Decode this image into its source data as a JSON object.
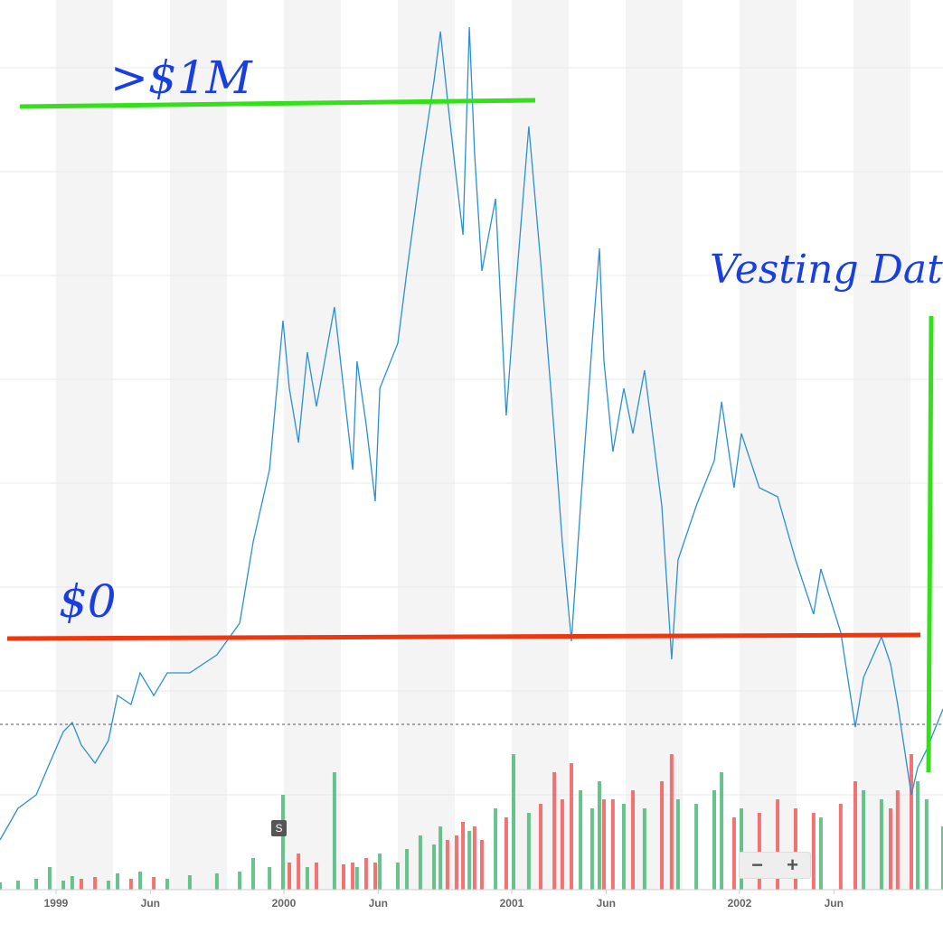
{
  "chart_data": {
    "type": "line",
    "x": [
      1998.754,
      1998.833,
      1998.913,
      1998.972,
      1999.032,
      1999.071,
      1999.111,
      1999.171,
      1999.23,
      1999.27,
      1999.329,
      1999.369,
      1999.429,
      1999.488,
      1999.587,
      1999.706,
      1999.806,
      1999.865,
      1999.937,
      1999.996,
      2000.024,
      2000.064,
      2000.103,
      2000.143,
      2000.222,
      2000.262,
      2000.302,
      2000.321,
      2000.361,
      2000.401,
      2000.421,
      2000.5,
      2000.54,
      2000.599,
      2000.659,
      2000.687,
      2000.718,
      2000.758,
      2000.786,
      2000.814,
      2000.837,
      2000.869,
      2000.929,
      2000.976,
      2001.008,
      2001.075,
      2001.127,
      2001.187,
      2001.222,
      2001.262,
      2001.302,
      2001.353,
      2001.385,
      2001.405,
      2001.444,
      2001.492,
      2001.532,
      2001.583,
      2001.659,
      2001.702,
      2001.73,
      2001.81,
      2001.889,
      2001.921,
      2001.976,
      2002.008,
      2002.087,
      2002.167,
      2002.246,
      2002.325,
      2002.357,
      2002.444,
      2002.508,
      2002.544,
      2002.623,
      2002.663,
      2002.694,
      2002.754,
      2002.782,
      2002.821,
      2002.893
    ],
    "values": [
      55,
      90,
      105,
      140,
      175,
      185,
      160,
      140,
      165,
      215,
      205,
      240,
      215,
      240,
      240,
      260,
      295,
      385,
      465,
      630,
      555,
      495,
      595,
      535,
      645,
      555,
      465,
      585,
      515,
      430,
      555,
      605,
      685,
      795,
      895,
      950,
      875,
      785,
      725,
      955,
      815,
      685,
      765,
      525,
      635,
      845,
      695,
      505,
      385,
      275,
      425,
      605,
      710,
      585,
      485,
      555,
      505,
      575,
      425,
      255,
      365,
      425,
      475,
      540,
      445,
      505,
      445,
      435,
      365,
      305,
      355,
      285,
      180,
      235,
      280,
      250,
      205,
      105,
      135,
      155,
      200
    ],
    "color": "#2b8fd6",
    "xlim": [
      1998.754,
      2002.893
    ],
    "ylim": [
      0,
      985
    ],
    "xticks": [
      {
        "value": 1999,
        "label": "1999"
      },
      {
        "value": 1999.414,
        "label": "Jun"
      },
      {
        "value": 2000,
        "label": "2000"
      },
      {
        "value": 2000.414,
        "label": "Jun"
      },
      {
        "value": 2001,
        "label": "2001"
      },
      {
        "value": 2001.414,
        "label": "Jun"
      },
      {
        "value": 2002,
        "label": "2002"
      },
      {
        "value": 2002.414,
        "label": "Jun"
      }
    ],
    "volume": {
      "values": [
        8,
        10,
        12,
        25,
        10,
        15,
        12,
        14,
        10,
        18,
        12,
        20,
        14,
        12,
        16,
        18,
        20,
        35,
        25,
        105,
        30,
        40,
        25,
        30,
        130,
        28,
        30,
        25,
        35,
        30,
        40,
        30,
        45,
        60,
        50,
        70,
        55,
        60,
        75,
        65,
        70,
        55,
        90,
        80,
        150,
        85,
        95,
        130,
        100,
        140,
        110,
        90,
        120,
        100,
        100,
        95,
        110,
        90,
        120,
        150,
        100,
        95,
        110,
        130,
        80,
        90,
        85,
        100,
        90,
        85,
        80,
        95,
        120,
        110,
        100,
        90,
        110,
        150,
        120,
        100,
        70
      ],
      "up_color": "#4cb87a",
      "down_color": "#ef5b5b",
      "ylim": [
        0,
        985
      ]
    }
  },
  "annotations": [
    ">$1M",
    "$0",
    "Vesting Date"
  ],
  "marker": "S",
  "zoom": [
    "−",
    "+"
  ]
}
